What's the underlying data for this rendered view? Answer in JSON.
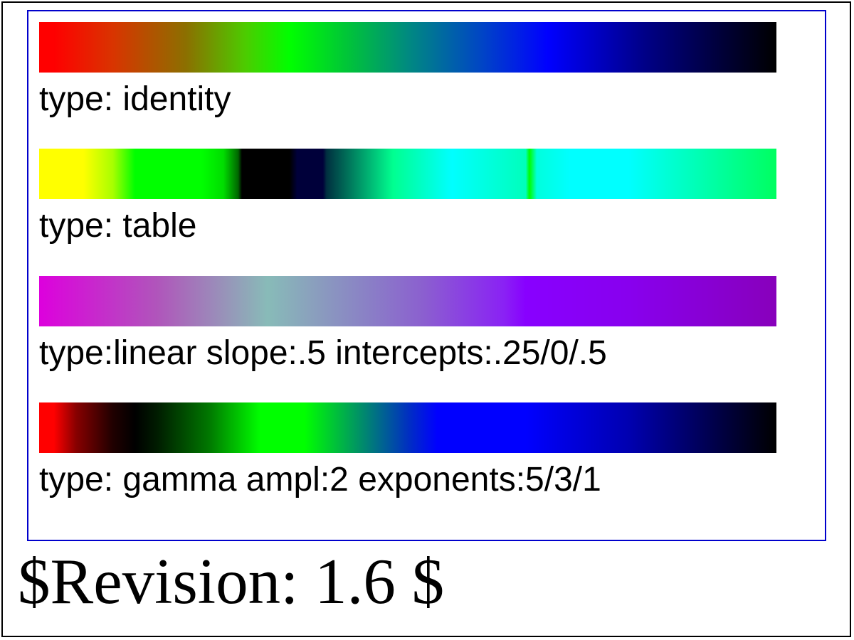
{
  "filters": [
    {
      "id": "identity",
      "label": "type: identity"
    },
    {
      "id": "table",
      "label": "type: table"
    },
    {
      "id": "linear",
      "label": "type:linear slope:.5 intercepts:.25/0/.5"
    },
    {
      "id": "gamma",
      "label": "type: gamma ampl:2 exponents:5/3/1"
    }
  ],
  "revision": "$Revision: 1.6 $",
  "colors": {
    "outer_border": "#000000",
    "inner_border": "#0000cc",
    "background": "#ffffff"
  }
}
